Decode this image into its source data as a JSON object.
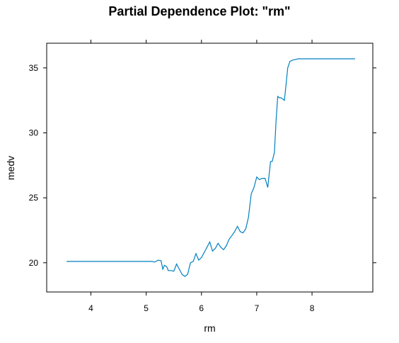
{
  "chart_data": {
    "type": "line",
    "title": "Partial Dependence Plot: \"rm\"",
    "xlabel": "rm",
    "ylabel": "medv",
    "xlim": [
      3.2,
      9.1
    ],
    "ylim": [
      17.75,
      36.9
    ],
    "xticks": [
      4,
      5,
      6,
      7,
      8
    ],
    "yticks": [
      20,
      25,
      30,
      35
    ],
    "series_color": "#0080c0",
    "series": [
      {
        "x": [
          3.56,
          5.1,
          5.15,
          5.22,
          5.27,
          5.3,
          5.33,
          5.37,
          5.4,
          5.45,
          5.5,
          5.55,
          5.6,
          5.65,
          5.7,
          5.75,
          5.8,
          5.85,
          5.9,
          5.95,
          6.0,
          6.05,
          6.1,
          6.15,
          6.2,
          6.25,
          6.3,
          6.35,
          6.4,
          6.45,
          6.5,
          6.55,
          6.6,
          6.65,
          6.7,
          6.75,
          6.8,
          6.85,
          6.9,
          6.95,
          7.0,
          7.05,
          7.1,
          7.15,
          7.2,
          7.25,
          7.28,
          7.32,
          7.35,
          7.38,
          7.41,
          7.44,
          7.47,
          7.5,
          7.53,
          7.56,
          7.6,
          7.65,
          7.7,
          7.75,
          7.8,
          7.85,
          7.9,
          8.0,
          8.2,
          8.4,
          8.6,
          8.78
        ],
        "y": [
          20.1,
          20.1,
          20.05,
          20.2,
          20.15,
          19.5,
          19.8,
          19.7,
          19.4,
          19.4,
          19.35,
          19.9,
          19.5,
          19.1,
          18.95,
          19.1,
          20.0,
          20.1,
          20.7,
          20.2,
          20.4,
          20.8,
          21.2,
          21.6,
          20.9,
          21.1,
          21.5,
          21.2,
          21.0,
          21.3,
          21.8,
          22.1,
          22.4,
          22.8,
          22.4,
          22.3,
          22.6,
          23.5,
          25.3,
          25.8,
          26.6,
          26.4,
          26.5,
          26.5,
          25.8,
          27.8,
          27.8,
          28.5,
          31.0,
          32.8,
          32.7,
          32.7,
          32.6,
          32.5,
          33.7,
          35.0,
          35.5,
          35.6,
          35.65,
          35.7,
          35.7,
          35.7,
          35.7,
          35.7,
          35.7,
          35.7,
          35.7,
          35.7
        ]
      }
    ]
  }
}
